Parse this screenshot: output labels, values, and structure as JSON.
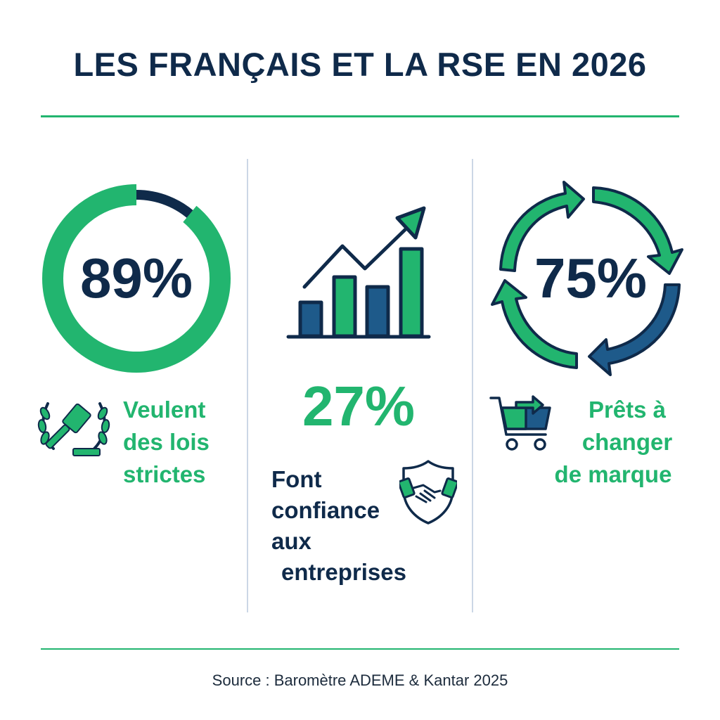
{
  "title": "LES FRANÇAIS ET LA RSE EN 2026",
  "colors": {
    "navy": "#0f2a4a",
    "green": "#22b56f",
    "blue": "#1e5a8a",
    "divider": "#cbd7e6"
  },
  "stats": [
    {
      "value": "89%",
      "fill_percent": 89,
      "label_lines": [
        "Veulent",
        "des lois",
        "strictes"
      ],
      "icon": "gavel-laurel-icon"
    },
    {
      "value": "27%",
      "label_lines": [
        "Font",
        "confiance",
        "aux",
        "entreprises"
      ],
      "icon": "bar-chart-up-icon",
      "secondary_icon": "handshake-shield-icon"
    },
    {
      "value": "75%",
      "label_lines": [
        "Prêts à",
        "changer",
        "de marque"
      ],
      "icon": "cycle-arrows-icon",
      "secondary_icon": "cart-switch-icon"
    }
  ],
  "source": "Source : Baromètre ADEME & Kantar 2025"
}
